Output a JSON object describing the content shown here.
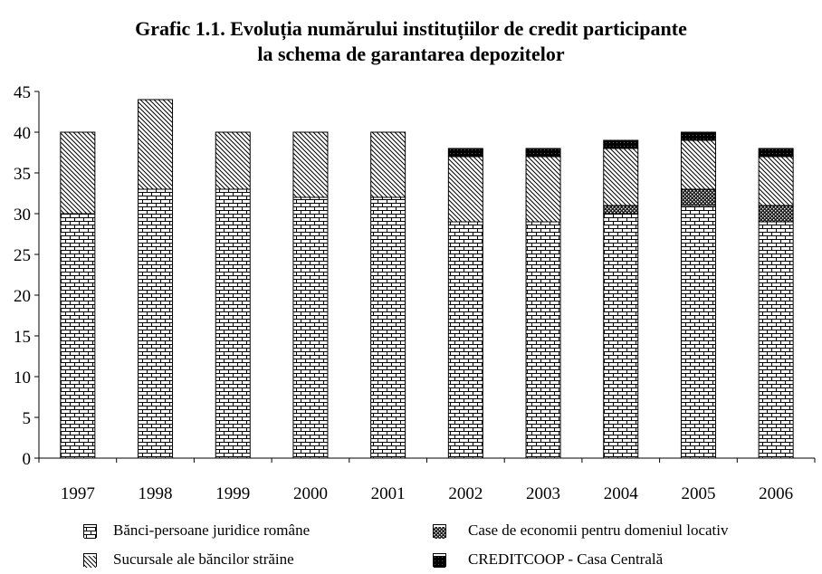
{
  "title_line1": "Grafic 1.1.  Evoluția numărului instituțiilor de credit participante",
  "title_line2": "la schema de garantarea depozitelor",
  "chart_data": {
    "type": "bar",
    "stacked": true,
    "title": "Grafic 1.1.  Evoluția numărului instituțiilor de credit participante la schema de garantarea depozitelor",
    "categories": [
      "1997",
      "1998",
      "1999",
      "2000",
      "2001",
      "2002",
      "2003",
      "2004",
      "2005",
      "2006"
    ],
    "ylim": [
      0,
      45
    ],
    "yticks": [
      0,
      5,
      10,
      15,
      20,
      25,
      30,
      35,
      40,
      45
    ],
    "grid": false,
    "legend_position": "bottom",
    "series": [
      {
        "name": "Bănci-persoane juridice române",
        "pattern": "brick",
        "values": [
          30,
          33,
          33,
          32,
          32,
          29,
          29,
          30,
          31,
          29
        ]
      },
      {
        "name": "Case de economii pentru domeniul locativ",
        "pattern": "dense-dots",
        "values": [
          0,
          0,
          0,
          0,
          0,
          0,
          0,
          1,
          2,
          2
        ]
      },
      {
        "name": "Sucursale ale băncilor străine",
        "pattern": "diagonal",
        "values": [
          10,
          11,
          7,
          8,
          8,
          8,
          8,
          7,
          6,
          6
        ]
      },
      {
        "name": "CREDITCOOP - Casa Centrală",
        "pattern": "solid-dark",
        "values": [
          0,
          0,
          0,
          0,
          0,
          1,
          1,
          1,
          1,
          1
        ]
      }
    ]
  },
  "legend": {
    "banci": "Bănci-persoane juridice române",
    "sucursale": "Sucursale ale băncilor străine",
    "case": "Case de economii pentru domeniul locativ",
    "creditcoop": "CREDITCOOP - Casa Centrală"
  }
}
